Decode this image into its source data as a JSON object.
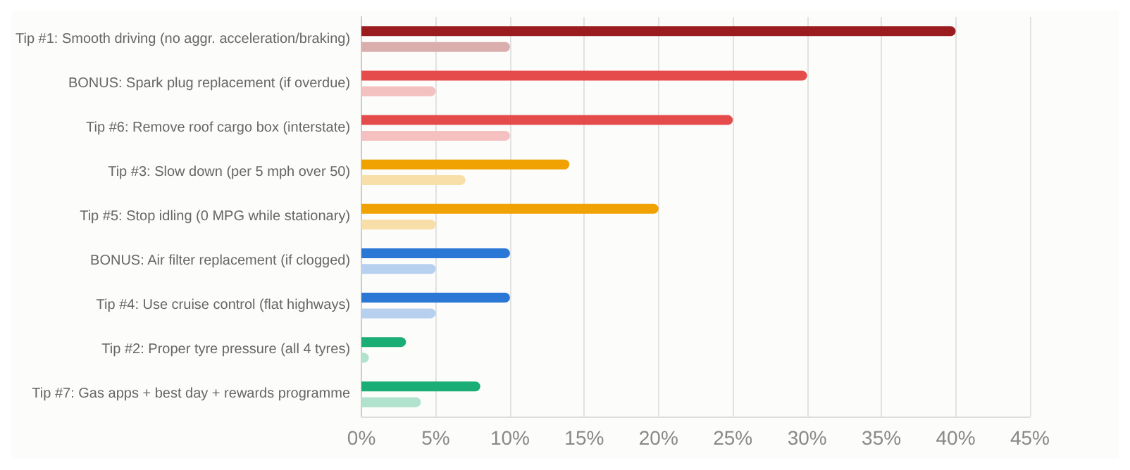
{
  "chart_data": {
    "type": "bar",
    "orientation": "horizontal",
    "categories": [
      "Tip #1: Smooth driving (no aggr. acceleration/braking)",
      "BONUS: Spark plug replacement (if overdue)",
      "Tip #6: Remove roof cargo box (interstate)",
      "Tip #3: Slow down (per 5 mph over 50)",
      "Tip #5: Stop idling (0 MPG while stationary)",
      "BONUS: Air filter replacement (if clogged)",
      "Tip #4: Use cruise control (flat highways)",
      "Tip #2: Proper tyre pressure (all 4 tyres)",
      "Tip #7: Gas apps + best day + rewards programme"
    ],
    "series": [
      {
        "values": [
          40,
          30,
          25,
          14,
          20,
          10,
          10,
          3,
          8
        ],
        "colors": [
          "#9b1c1f",
          "#e54b4b",
          "#e54b4b",
          "#f0a202",
          "#f0a202",
          "#2b77d6",
          "#2b77d6",
          "#1aae74",
          "#1aae74"
        ]
      },
      {
        "values": [
          10,
          5,
          10,
          7,
          5,
          5,
          5,
          0.5,
          4
        ],
        "colors": [
          "#dbaeae",
          "#f4c0c0",
          "#f4c0c0",
          "#f8dea8",
          "#f8dea8",
          "#b8d0ef",
          "#b8d0ef",
          "#b0e2cd",
          "#b0e2cd"
        ]
      }
    ],
    "xlim": [
      0,
      45
    ],
    "xticks": [
      {
        "value": 0,
        "label": "0%"
      },
      {
        "value": 5,
        "label": "5%"
      },
      {
        "value": 10,
        "label": "10%"
      },
      {
        "value": 15,
        "label": "15%"
      },
      {
        "value": 20,
        "label": "20%"
      },
      {
        "value": 25,
        "label": "25%"
      },
      {
        "value": 30,
        "label": "30%"
      },
      {
        "value": 35,
        "label": "35%"
      },
      {
        "value": 40,
        "label": "40%"
      },
      {
        "value": 45,
        "label": "45%"
      }
    ],
    "grid": "x"
  }
}
